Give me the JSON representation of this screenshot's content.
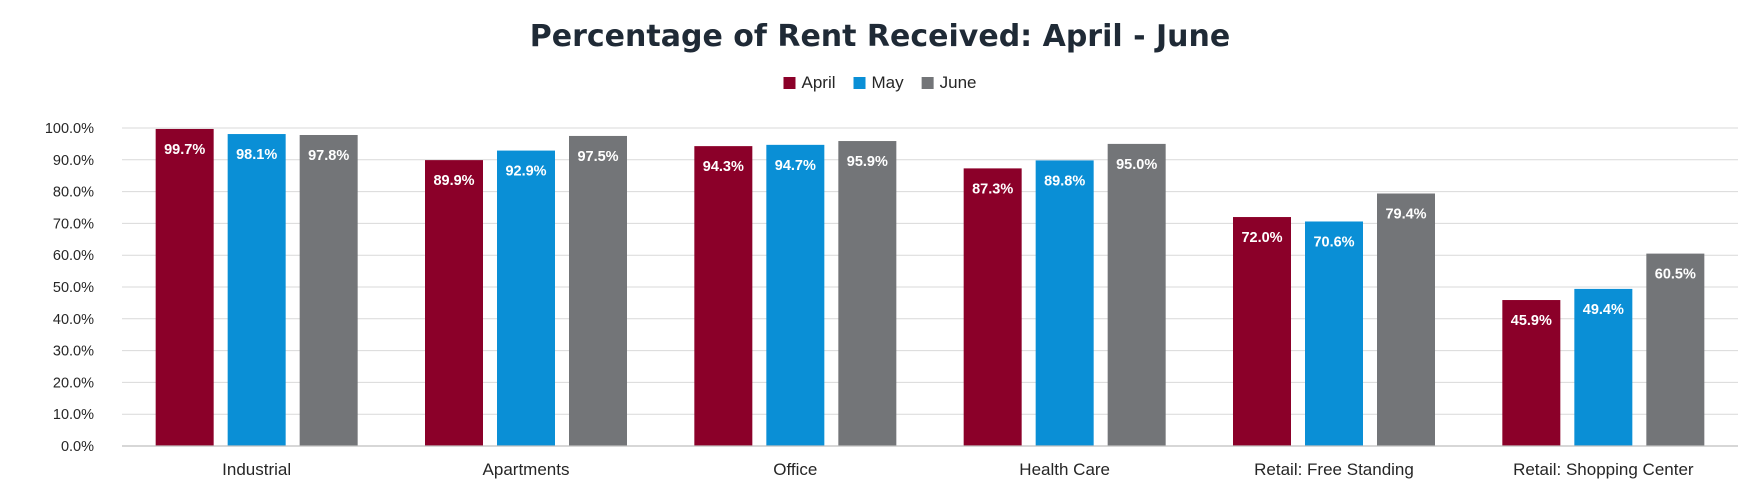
{
  "chart_data": {
    "type": "bar",
    "title": "Percentage of Rent Received: April - June",
    "xlabel": "",
    "ylabel": "",
    "categories": [
      "Industrial",
      "Apartments",
      "Office",
      "Health Care",
      "Retail: Free Standing",
      "Retail: Shopping Center"
    ],
    "series": [
      {
        "name": "April",
        "color": "#8b0029",
        "values": [
          99.7,
          89.9,
          94.3,
          87.3,
          72.0,
          45.9
        ],
        "labels": [
          "99.7%",
          "89.9%",
          "94.3%",
          "87.3%",
          "72.0%",
          "45.9%"
        ]
      },
      {
        "name": "May",
        "color": "#0a8fd6",
        "values": [
          98.1,
          92.9,
          94.7,
          89.8,
          70.6,
          49.4
        ],
        "labels": [
          "98.1%",
          "92.9%",
          "94.7%",
          "89.8%",
          "70.6%",
          "49.4%"
        ]
      },
      {
        "name": "June",
        "color": "#737578",
        "values": [
          97.8,
          97.5,
          95.9,
          95.0,
          79.4,
          60.5
        ],
        "labels": [
          "97.8%",
          "97.5%",
          "95.9%",
          "95.0%",
          "79.4%",
          "60.5%"
        ]
      }
    ],
    "ylim": [
      0,
      100
    ],
    "yticks": [
      0,
      10,
      20,
      30,
      40,
      50,
      60,
      70,
      80,
      90,
      100
    ],
    "ytick_labels": [
      "0.0%",
      "10.0%",
      "20.0%",
      "30.0%",
      "40.0%",
      "50.0%",
      "60.0%",
      "70.0%",
      "80.0%",
      "90.0%",
      "100.0%"
    ],
    "grid": true,
    "legend_position": "top-center",
    "gridline_color": "#d9d9d9",
    "axis_color": "#bfbfbf"
  }
}
